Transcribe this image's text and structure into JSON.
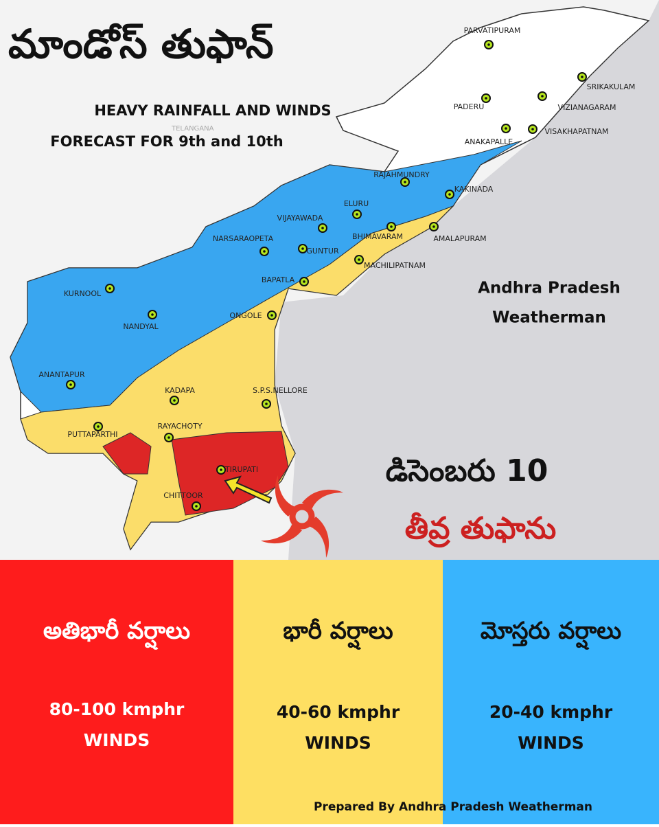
{
  "title": "మాండోస్ తుఫాన్",
  "subtitle": [
    "HEAVY RAINFALL AND WINDS",
    "FORECAST FOR 9th and 10th"
  ],
  "watermark": "TELANGANA",
  "cities": [
    "PARVATIPURAM",
    "SRIKAKULAM",
    "PADERU",
    "VIZIANAGARAM",
    "VISAKHAPATNAM",
    "ANAKAPALLE",
    "RAJAHMUNDRY",
    "KAKINADA",
    "ELURU",
    "VIJAYAWADA",
    "NARSARAOPETA",
    "GUNTUR",
    "BHIMAVARAM",
    "AMALAPURAM",
    "MACHILIPATNAM",
    "BAPATLA",
    "KURNOOL",
    "NANDYAL",
    "ONGOLE",
    "ANANTAPUR",
    "KADAPA",
    "S.P.S.NELLORE",
    "PUTTAPARTHI",
    "RAYACHOTY",
    "TIRUPATI",
    "CHITTOOR"
  ],
  "credit": [
    "Andhra Pradesh",
    "Weatherman"
  ],
  "date": "డిసెంబరు 10",
  "storm": "తీవ్ర తుఫాను",
  "legend": [
    {
      "label": "అతిభారీ వర్షాలు",
      "winds": [
        "80-100 kmphr",
        "WINDS"
      ],
      "color": "#fe1c1c"
    },
    {
      "label": "భారీ వర్షాలు",
      "winds": [
        "40-60 kmphr",
        "WINDS"
      ],
      "color": "#fedf62"
    },
    {
      "label": "మోస్తరు వర్షాలు",
      "winds": [
        "20-40 kmphr",
        "WINDS"
      ],
      "color": "#39b4fd"
    }
  ],
  "footer": "Prepared By Andhra Pradesh Weatherman"
}
